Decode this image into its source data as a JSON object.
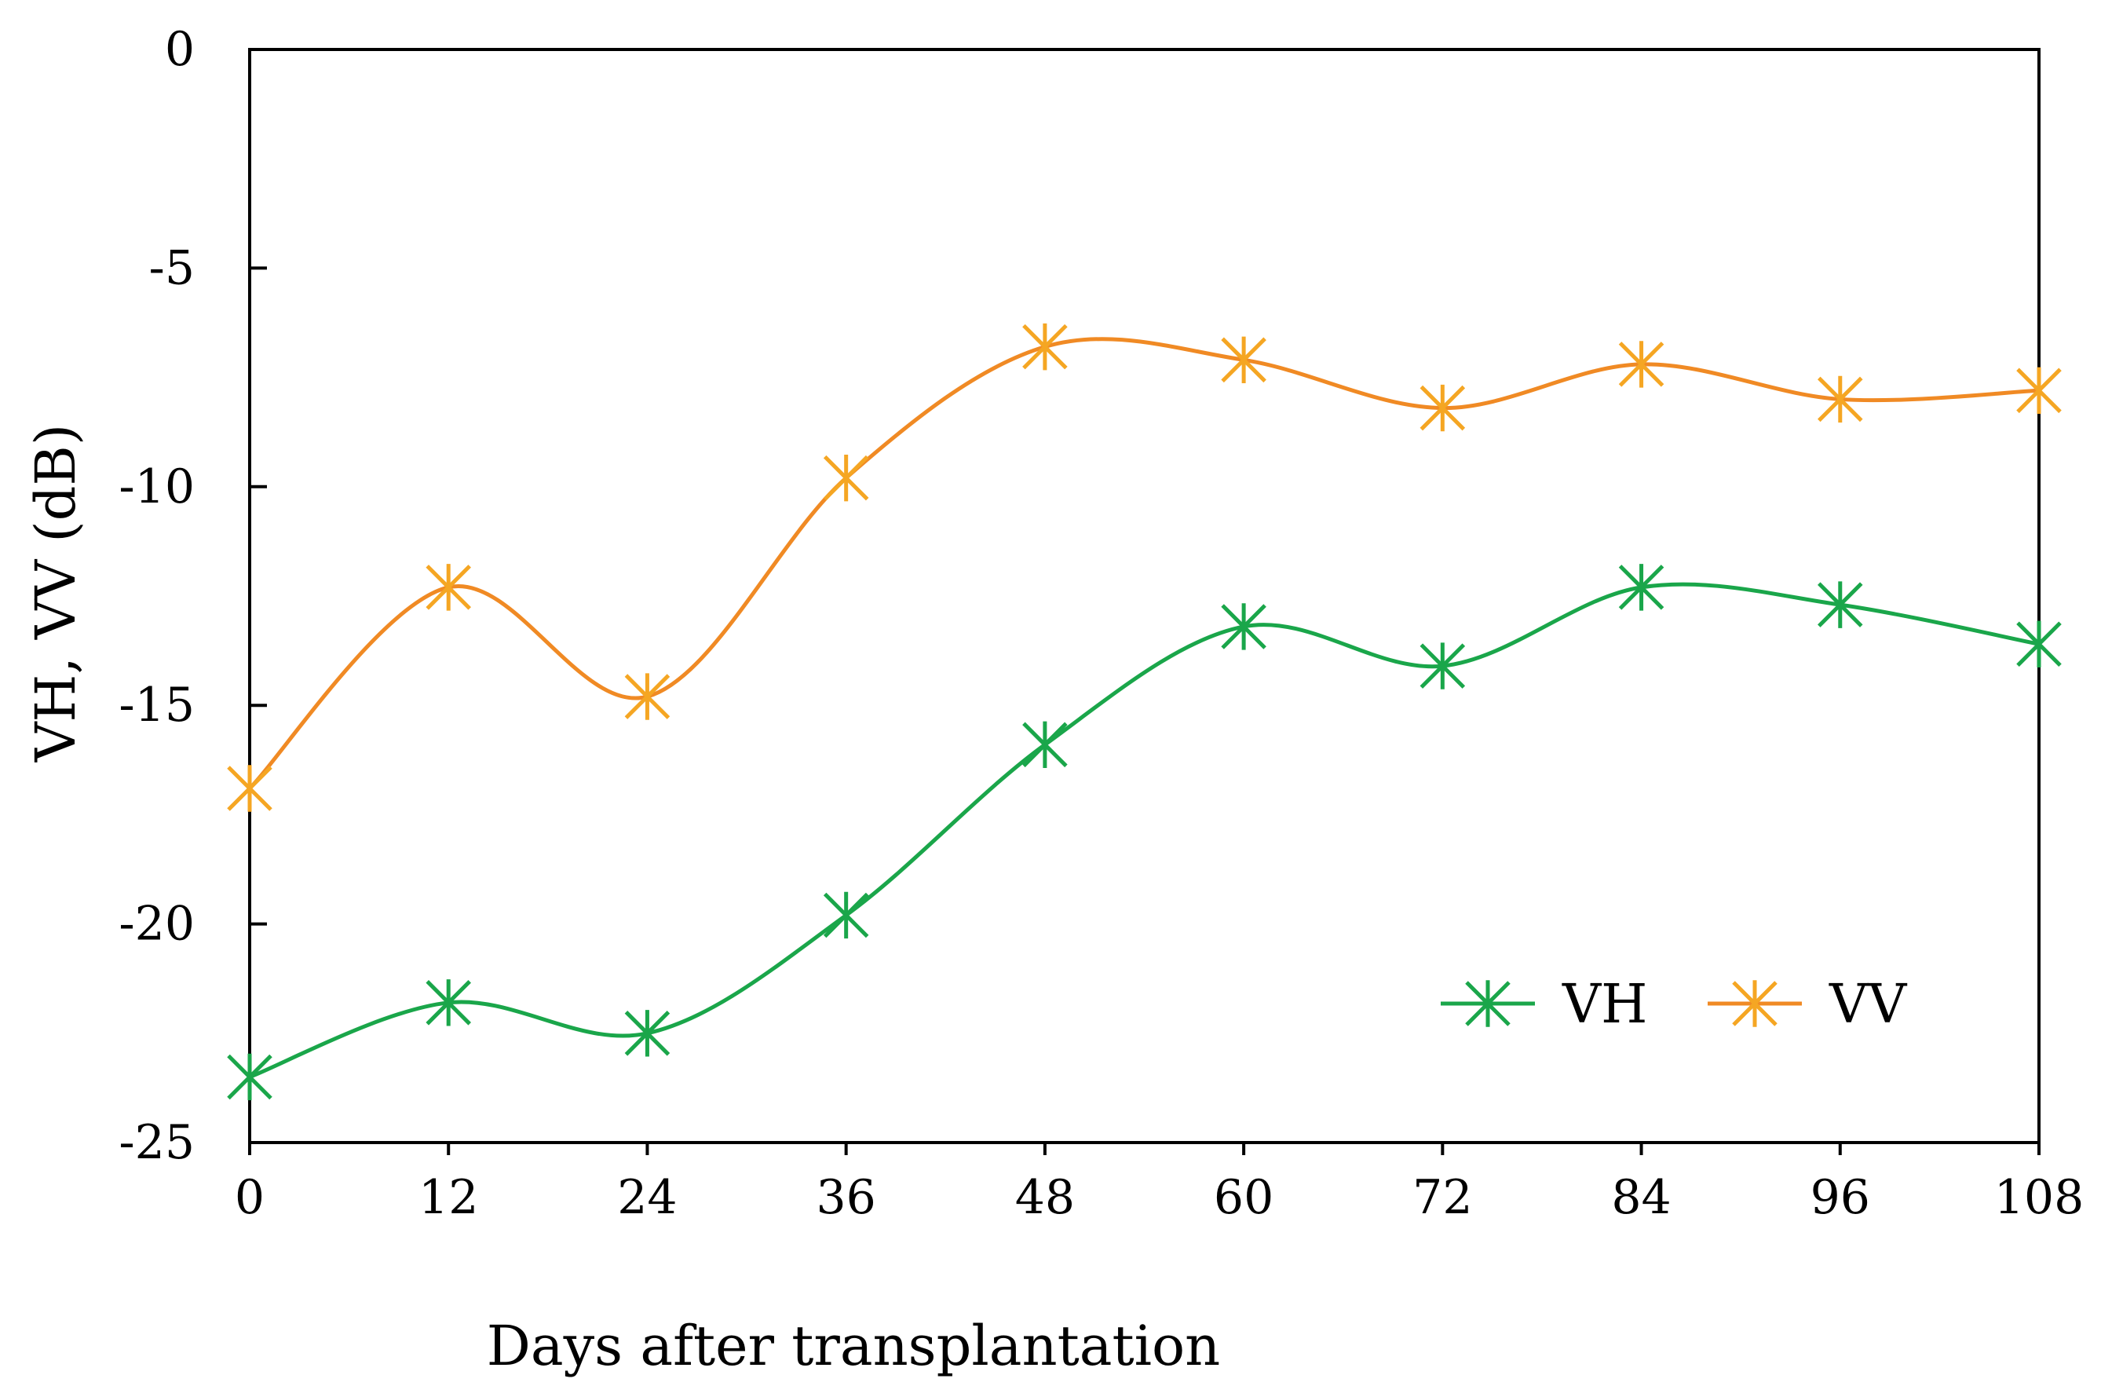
{
  "chart_data": {
    "type": "line",
    "title": "",
    "xlabel": "Days after transplantation",
    "ylabel": "VH, VV (dB)",
    "x": [
      0,
      12,
      24,
      36,
      48,
      60,
      72,
      84,
      96,
      108
    ],
    "x_tick_labels": [
      "0",
      "12",
      "24",
      "36",
      "48",
      "60",
      "72",
      "84",
      "96",
      "108"
    ],
    "y_tick_values": [
      0,
      -5,
      -10,
      -15,
      -20,
      -25
    ],
    "y_tick_labels": [
      "0",
      "-5",
      "-10",
      "-15",
      "-20",
      "-25"
    ],
    "xlim": [
      0,
      108
    ],
    "ylim": [
      -25,
      0
    ],
    "grid": false,
    "smooth": true,
    "legend_position": "bottom-right",
    "series": [
      {
        "name": "VH",
        "color": "#1aa64a",
        "marker": "asterisk",
        "values": [
          -23.5,
          -21.8,
          -22.5,
          -19.8,
          -15.9,
          -13.2,
          -14.1,
          -12.3,
          -12.7,
          -13.6
        ]
      },
      {
        "name": "VV",
        "color": "#f08a24",
        "marker_color": "#f5a623",
        "marker": "asterisk",
        "values": [
          -16.9,
          -12.3,
          -14.8,
          -9.8,
          -6.8,
          -7.1,
          -8.2,
          -7.2,
          -8.0,
          -7.8
        ]
      }
    ]
  }
}
